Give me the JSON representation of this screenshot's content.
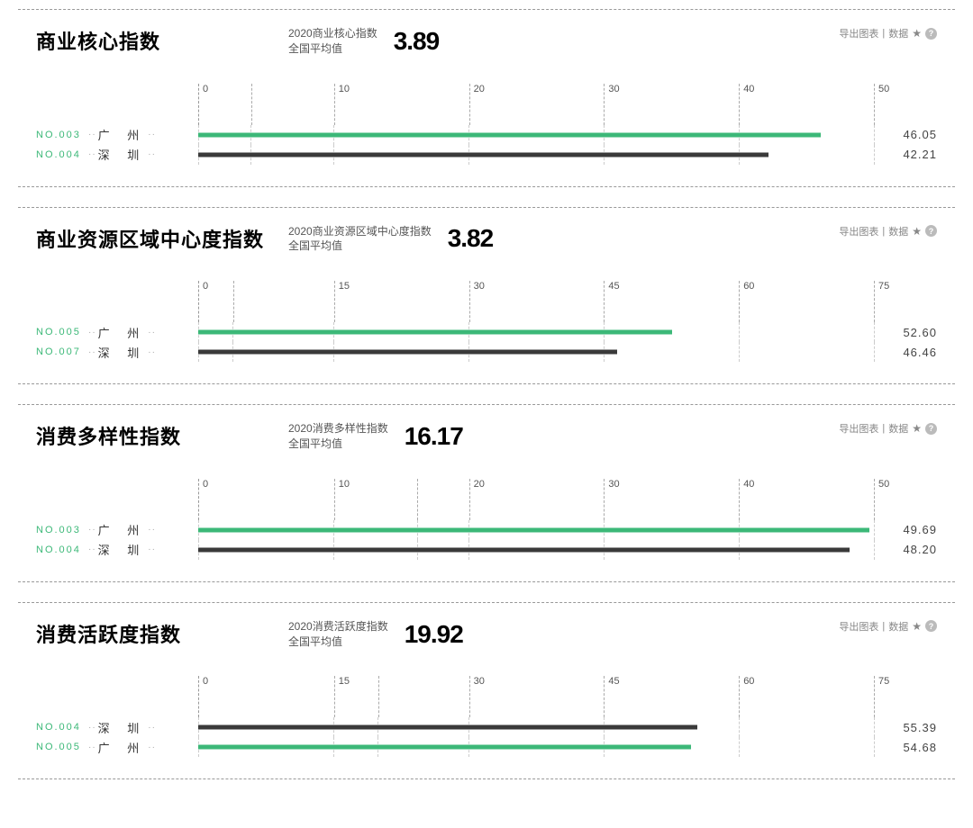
{
  "export": {
    "chart_label": "导出图表",
    "data_label": "数据",
    "separator": " | ",
    "star": "★",
    "help": "?"
  },
  "colors": {
    "guangzhou": "#3cb878",
    "shenzhen": "#3a3a3a",
    "rank_text": "#3cb878",
    "grid": "#aaaaaa",
    "background": "#ffffff"
  },
  "panels": [
    {
      "id": "core",
      "title": "商业核心指数",
      "avg_label_line1": "2020商业核心指数",
      "avg_label_line2": "全国平均值",
      "avg_value": "3.89",
      "axis_max": 50,
      "ticks": [
        0,
        10,
        20,
        30,
        40,
        50
      ],
      "marker_at": 3.89,
      "rows": [
        {
          "rank": "NO.003",
          "city": "广 州",
          "value": 46.05,
          "value_label": "46.05",
          "color": "#3cb878"
        },
        {
          "rank": "NO.004",
          "city": "深 圳",
          "value": 42.21,
          "value_label": "42.21",
          "color": "#3a3a3a"
        }
      ]
    },
    {
      "id": "regional",
      "title": "商业资源区域中心度指数",
      "avg_label_line1": "2020商业资源区域中心度指数",
      "avg_label_line2": "全国平均值",
      "avg_value": "3.82",
      "axis_max": 75,
      "ticks": [
        0,
        15,
        30,
        45,
        60,
        75
      ],
      "marker_at": 3.82,
      "rows": [
        {
          "rank": "NO.005",
          "city": "广 州",
          "value": 52.6,
          "value_label": "52.60",
          "color": "#3cb878"
        },
        {
          "rank": "NO.007",
          "city": "深 圳",
          "value": 46.46,
          "value_label": "46.46",
          "color": "#3a3a3a"
        }
      ]
    },
    {
      "id": "diversity",
      "title": "消费多样性指数",
      "avg_label_line1": "2020消费多样性指数",
      "avg_label_line2": "全国平均值",
      "avg_value": "16.17",
      "axis_max": 50,
      "ticks": [
        0,
        10,
        20,
        30,
        40,
        50
      ],
      "marker_at": 16.17,
      "rows": [
        {
          "rank": "NO.003",
          "city": "广 州",
          "value": 49.69,
          "value_label": "49.69",
          "color": "#3cb878"
        },
        {
          "rank": "NO.004",
          "city": "深 圳",
          "value": 48.2,
          "value_label": "48.20",
          "color": "#3a3a3a"
        }
      ]
    },
    {
      "id": "activity",
      "title": "消费活跃度指数",
      "avg_label_line1": "2020消费活跃度指数",
      "avg_label_line2": "全国平均值",
      "avg_value": "19.92",
      "axis_max": 75,
      "ticks": [
        0,
        15,
        30,
        45,
        60,
        75
      ],
      "marker_at": 19.92,
      "rows": [
        {
          "rank": "NO.004",
          "city": "深 圳",
          "value": 55.39,
          "value_label": "55.39",
          "color": "#3a3a3a"
        },
        {
          "rank": "NO.005",
          "city": "广 州",
          "value": 54.68,
          "value_label": "54.68",
          "color": "#3cb878"
        }
      ]
    }
  ]
}
